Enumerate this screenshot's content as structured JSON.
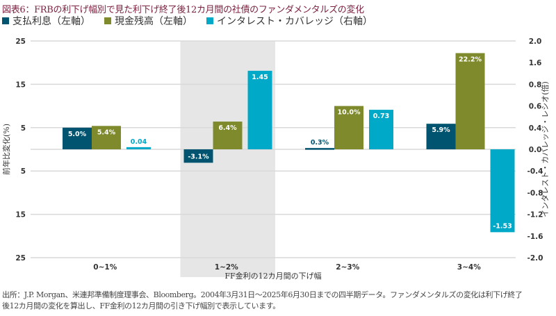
{
  "chart_data": {
    "type": "bar",
    "title": "図表6：FRBの利下げ幅別で見た利下げ終了後12カ月間の社債のファンダメンタルズの変化",
    "xlabel": "FF金利の12カ月間の下げ幅",
    "ylabel_left": "前年比変化(%)",
    "ylabel_right": "インタレスト・カバレッジ・レシオ(倍)",
    "categories": [
      "0~1%",
      "1~2%",
      "2~3%",
      "3~4%"
    ],
    "highlighted_category": "1~2%",
    "ylim_left": [
      -25,
      25
    ],
    "ylim_right": [
      -2.0,
      2.0
    ],
    "left_tick_labels": [
      "25",
      "15",
      "5",
      "",
      "5",
      "15",
      "25"
    ],
    "left_tick_values": [
      25,
      15,
      5,
      0,
      -5,
      -15,
      -25
    ],
    "right_tick_labels": [
      "2.0",
      "1.6",
      "0.8",
      "0.6",
      "0.4",
      "0.0",
      "-0.4",
      "-0.8",
      "-1.2",
      "-1.6",
      "-2.0"
    ],
    "grid": true,
    "legend_position": "top-left",
    "series": [
      {
        "name": "支払利息（左軸）",
        "axis": "left",
        "color": "#00546f",
        "values": [
          5.0,
          -3.1,
          0.3,
          5.9
        ],
        "labels": [
          "5.0%",
          "-3.1%",
          "0.3%",
          "5.9%"
        ]
      },
      {
        "name": "現金残高（左軸）",
        "axis": "left",
        "color": "#7e8a2c",
        "values": [
          5.4,
          6.4,
          10.0,
          22.2
        ],
        "labels": [
          "5.4%",
          "6.4%",
          "10.0%",
          "22.2%"
        ]
      },
      {
        "name": "インタレスト・カバレッジ（右軸）",
        "axis": "right",
        "color": "#00a9c7",
        "values": [
          0.04,
          1.45,
          0.73,
          -1.53
        ],
        "labels": [
          "0.04",
          "1.45",
          "0.73",
          "-1.53"
        ]
      }
    ]
  },
  "footnote": {
    "line1": "出所：J.P. Morgan、米連邦準備制度理事会、Bloomberg。2004年3月31日～2025年6月30日までの四半期データ。ファンダメンタルズの変化は利下げ終了",
    "line2": "後12カ月間の変化を算出し、FF金利の12カ月間の引き下げ幅別で表示しています。"
  },
  "colors": {
    "title": "#7a1f3d",
    "highlight_band": "#e6e6e6",
    "grid": "#d9d9d9"
  }
}
